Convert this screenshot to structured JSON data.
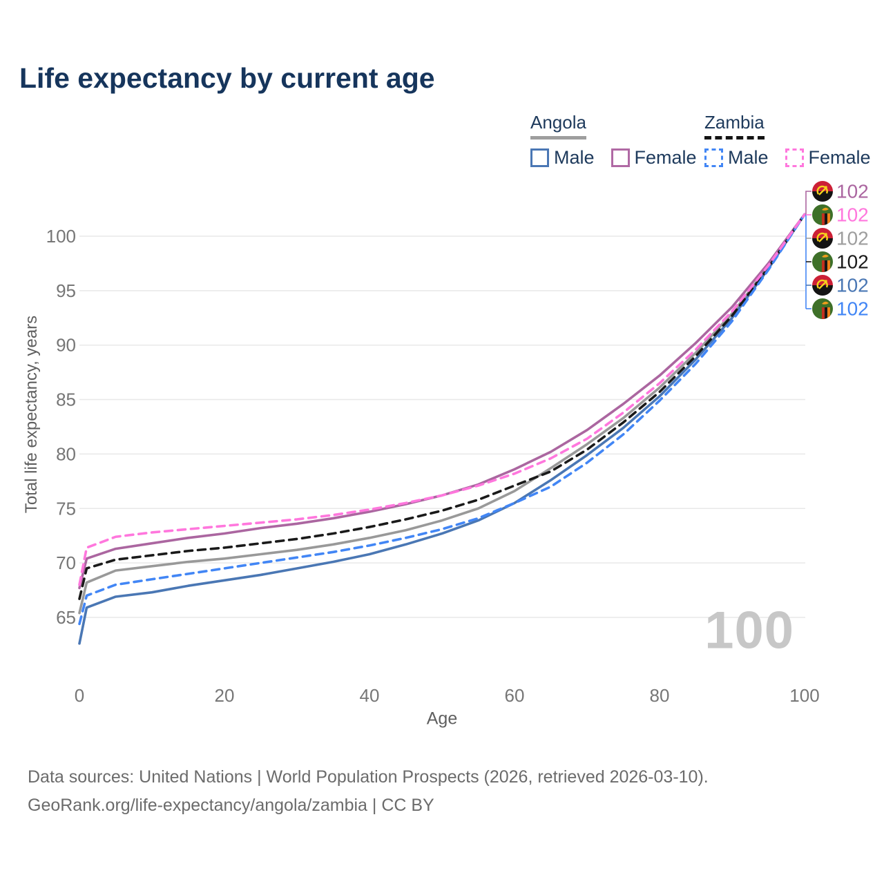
{
  "header": {
    "title": "Life expectancy by current age"
  },
  "legend": {
    "groups": [
      {
        "country": "Angola",
        "underline_style": "solid",
        "underline_color": "#9e9e9e",
        "items": [
          {
            "label": "Male",
            "color": "#4a77b4",
            "line": "solid"
          },
          {
            "label": "Female",
            "color": "#b069a4",
            "line": "solid"
          }
        ]
      },
      {
        "country": "Zambia",
        "underline_style": "dashed",
        "underline_color": "#141414",
        "items": [
          {
            "label": "Male",
            "color": "#4286f5",
            "line": "dashed"
          },
          {
            "label": "Female",
            "color": "#ff77dd",
            "line": "dashed"
          }
        ]
      }
    ]
  },
  "chart_data": {
    "type": "line",
    "title": "Life expectancy by current age",
    "xlabel": "Age",
    "ylabel": "Total life expectancy, years",
    "xlim": [
      0,
      100
    ],
    "ylim": [
      62,
      103
    ],
    "x_ticks": [
      0,
      20,
      40,
      60,
      80,
      100
    ],
    "y_ticks": [
      65,
      70,
      75,
      80,
      85,
      90,
      95,
      100
    ],
    "grid": "horizontal-only",
    "legend_position": "top-right",
    "age_indicator": "100",
    "x": [
      0,
      1,
      5,
      10,
      15,
      20,
      25,
      30,
      35,
      40,
      45,
      50,
      55,
      60,
      65,
      70,
      75,
      80,
      85,
      90,
      95,
      100
    ],
    "series": [
      {
        "id": "angola-both",
        "name": "Angola Both sexes",
        "country": "Angola",
        "sex": "Both",
        "color": "#999999",
        "dash": "solid",
        "end_value": 102,
        "values": [
          65.4,
          68.2,
          69.3,
          69.7,
          70.1,
          70.4,
          70.8,
          71.2,
          71.7,
          72.3,
          73.0,
          73.9,
          75.0,
          76.6,
          78.7,
          80.9,
          83.3,
          86.1,
          89.3,
          92.9,
          97.2,
          102
        ]
      },
      {
        "id": "angola-female",
        "name": "Angola Female",
        "country": "Angola",
        "sex": "Female",
        "color": "#ab66a0",
        "dash": "solid",
        "end_value": 102,
        "values": [
          67.7,
          70.4,
          71.3,
          71.8,
          72.3,
          72.7,
          73.2,
          73.6,
          74.1,
          74.7,
          75.4,
          76.2,
          77.2,
          78.6,
          80.2,
          82.2,
          84.6,
          87.2,
          90.2,
          93.5,
          97.5,
          102
        ]
      },
      {
        "id": "angola-male",
        "name": "Angola Male",
        "country": "Angola",
        "sex": "Male",
        "color": "#4a77b4",
        "dash": "solid",
        "end_value": 102,
        "values": [
          62.6,
          65.9,
          66.9,
          67.3,
          67.9,
          68.4,
          68.9,
          69.5,
          70.1,
          70.8,
          71.7,
          72.7,
          73.9,
          75.5,
          77.6,
          79.9,
          82.4,
          85.3,
          88.7,
          92.5,
          97.0,
          102
        ]
      },
      {
        "id": "zambia-both",
        "name": "Zambia Both sexes",
        "country": "Zambia",
        "sex": "Both",
        "color": "#1a1a1a",
        "dash": "dashed",
        "end_value": 102,
        "values": [
          66.7,
          69.5,
          70.3,
          70.7,
          71.1,
          71.4,
          71.8,
          72.2,
          72.7,
          73.3,
          74.0,
          74.8,
          75.8,
          77.1,
          78.4,
          80.4,
          82.9,
          85.7,
          89.0,
          92.7,
          97.1,
          102
        ]
      },
      {
        "id": "zambia-male",
        "name": "Zambia Male",
        "country": "Zambia",
        "sex": "Male",
        "color": "#4286f5",
        "dash": "dashed",
        "end_value": 102,
        "values": [
          64.4,
          67.0,
          68.0,
          68.5,
          69.0,
          69.5,
          70.0,
          70.5,
          71.0,
          71.6,
          72.3,
          73.1,
          74.1,
          75.5,
          77.0,
          79.2,
          81.8,
          84.9,
          88.3,
          92.2,
          96.9,
          102
        ]
      },
      {
        "id": "zambia-female",
        "name": "Zambia Female",
        "country": "Zambia",
        "sex": "Female",
        "color": "#ff77dd",
        "dash": "dashed",
        "end_value": 102,
        "values": [
          68.0,
          71.4,
          72.4,
          72.8,
          73.1,
          73.4,
          73.7,
          74.0,
          74.4,
          74.9,
          75.5,
          76.2,
          77.1,
          78.2,
          79.6,
          81.4,
          83.8,
          86.5,
          89.6,
          93.1,
          97.3,
          102
        ]
      }
    ]
  },
  "right_labels": [
    {
      "id": "angola-female",
      "flag": "angola",
      "value": "102",
      "color": "#ab66a0"
    },
    {
      "id": "zambia-female",
      "flag": "zambia",
      "value": "102",
      "color": "#ff77dd"
    },
    {
      "id": "angola-both",
      "flag": "angola",
      "value": "102",
      "color": "#9e9e9e"
    },
    {
      "id": "zambia-both",
      "flag": "zambia",
      "value": "102",
      "color": "#1a1a1a"
    },
    {
      "id": "angola-male",
      "flag": "angola",
      "value": "102",
      "color": "#4a77b4"
    },
    {
      "id": "zambia-male",
      "flag": "zambia",
      "value": "102",
      "color": "#4286f5"
    }
  ],
  "flags": {
    "angola": {
      "red": "#cc2036",
      "black": "#141414",
      "yellow": "#f6d31c"
    },
    "zambia": {
      "green": "#3e7029",
      "red": "#c0301e",
      "black": "#161616",
      "orange": "#ef8018",
      "eagle": "#ef9e1b"
    }
  },
  "footer": {
    "line1": "Data sources: United Nations | World Population Prospects (2026, retrieved 2026-03-10).",
    "line2": "GeoRank.org/life-expectancy/angola/zambia | CC BY"
  }
}
